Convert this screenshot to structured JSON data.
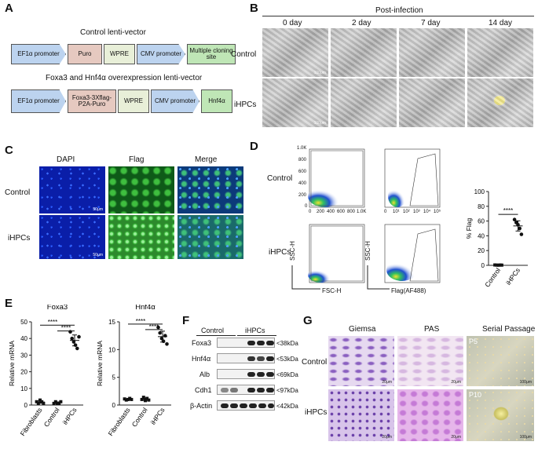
{
  "panels": {
    "A": {
      "letter": "A",
      "control_title": "Control lenti-vector",
      "control_boxes": [
        "EF1α promoter",
        "Puro",
        "WPRE",
        "CMV promoter",
        "Multiple cloning site"
      ],
      "foxa_title": "Foxa3 and Hnf4α overexpression lenti-vector",
      "foxa_boxes": [
        "EF1α promoter",
        "Foxa3-3Xflag- P2A-Puro",
        "WPRE",
        "CMV promoter",
        "Hnf4α"
      ]
    },
    "B": {
      "letter": "B",
      "header": "Post-infection",
      "days": [
        "0 day",
        "2 day",
        "7 day",
        "14 day"
      ],
      "rows": [
        "Control",
        "iHPCs"
      ],
      "scale": "100μm"
    },
    "C": {
      "letter": "C",
      "columns": [
        "DAPI",
        "Flag",
        "Merge"
      ],
      "rows": [
        "Control",
        "iHPCs"
      ],
      "scale": "50μm"
    },
    "D": {
      "letter": "D",
      "rows": [
        "Control",
        "iHPCs"
      ],
      "y_axis": "SSC-H",
      "x_axis_left": "FSC-H",
      "x_axis_right": "Flag(AF488)",
      "y_ticks": [
        "1.0K",
        "800",
        "600",
        "400",
        "200",
        "0"
      ],
      "x_ticks": [
        "0",
        "200",
        "400",
        "600",
        "800",
        "1.0K"
      ],
      "log_ticks": [
        "0",
        "10¹",
        "10²",
        "10³",
        "10⁴",
        "10⁵"
      ],
      "sig": "****"
    },
    "E": {
      "letter": "E",
      "sig": "****"
    },
    "F": {
      "letter": "F",
      "header_control": "Control",
      "header_ihpcs": "iHPCs",
      "proteins": [
        "Foxa3",
        "Hnf4α",
        "Alb",
        "Cdh1",
        "β-Actin"
      ],
      "sizes": [
        "<38kDa",
        "<53kDa",
        "<69kDa",
        "<97kDa",
        "<42kDa"
      ]
    },
    "G": {
      "letter": "G",
      "columns": [
        "Giemsa",
        "PAS",
        "Serial Passage"
      ],
      "rows": [
        "Control",
        "iHPCs"
      ],
      "passages": [
        "P5",
        "P10"
      ],
      "scale_small": "20μm",
      "scale_big": "100μm"
    }
  },
  "chart_data": [
    {
      "type": "scatter",
      "title": "",
      "categories": [
        "Control",
        "iHPCs"
      ],
      "xlabel": "",
      "ylabel": "% Flag",
      "ylim": [
        0,
        100
      ],
      "yticks": [
        0,
        20,
        40,
        60,
        80,
        100
      ],
      "series": [
        {
          "values": [
            [
              0.5,
              0.3,
              0.2,
              0.4,
              0.3
            ],
            [
              62,
              58,
              55,
              50,
              42
            ]
          ]
        }
      ],
      "annotations": [
        "****"
      ]
    },
    {
      "type": "scatter",
      "title": "Foxa3",
      "categories": [
        "Fibroblasts",
        "Control",
        "iHPCs"
      ],
      "xlabel": "",
      "ylabel": "Relative mRNA",
      "ylim": [
        0,
        50
      ],
      "yticks": [
        0,
        10,
        20,
        30,
        40,
        50
      ],
      "series": [
        {
          "values": [
            [
              2,
              1,
              3,
              2,
              1
            ],
            [
              1,
              2,
              1,
              1,
              2
            ],
            [
              44,
              40,
              38,
              36,
              34,
              41
            ]
          ]
        }
      ],
      "annotations": [
        "****",
        "****"
      ]
    },
    {
      "type": "scatter",
      "title": "Hnf4α",
      "categories": [
        "Fibroblasts",
        "Control",
        "iHPCs"
      ],
      "xlabel": "",
      "ylabel": "Relative mRNA",
      "ylim": [
        0,
        15
      ],
      "yticks": [
        0,
        5,
        10,
        15
      ],
      "series": [
        {
          "values": [
            [
              1.1,
              0.9,
              1.0,
              1.2,
              1.0
            ],
            [
              1.0,
              1.4,
              0.8,
              1.2,
              0.9
            ],
            [
              14,
              13,
              12,
              11.5,
              12.5,
              11
            ]
          ]
        }
      ],
      "annotations": [
        "****",
        "****"
      ]
    }
  ]
}
